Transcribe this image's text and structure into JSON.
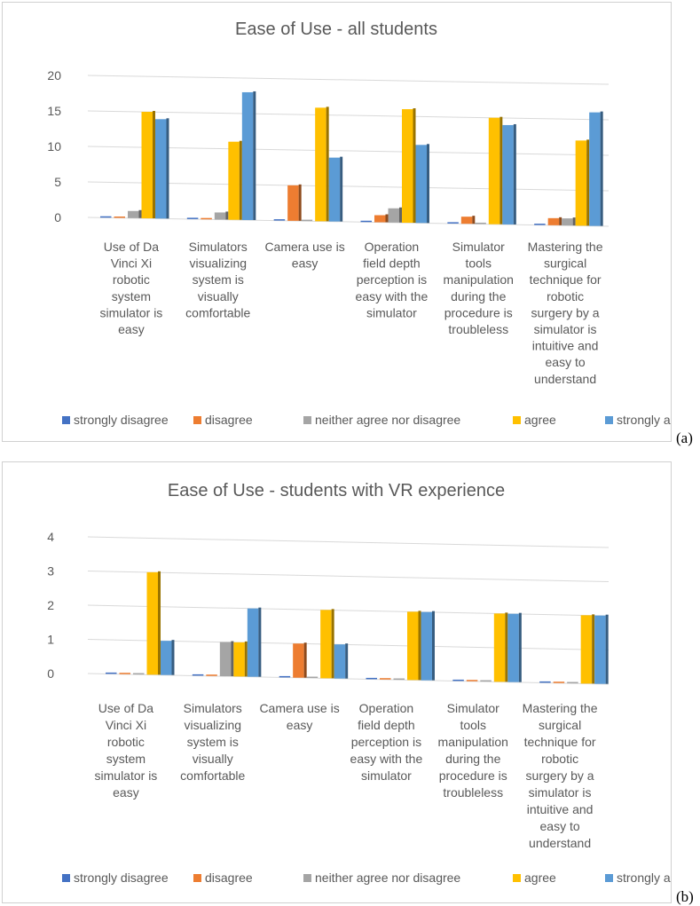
{
  "chart_data": [
    {
      "type": "bar",
      "title": "Ease of Use - all students",
      "panel_label": "(a)",
      "categories": [
        "Use of Da Vinci Xi robotic system simulator is easy",
        "Simulators visualizing system is visually comfortable",
        "Camera use is easy",
        "Operation field depth perception is easy with the simulator",
        "Simulator tools manipulation during the procedure is troubleless",
        "Mastering the surgical technique for robotic surgery by a simulator is intuitive and easy to understand"
      ],
      "category_lines": [
        [
          "Use of Da",
          "Vinci Xi",
          "robotic",
          "system",
          "simulator is",
          "easy"
        ],
        [
          "Simulators",
          "visualizing",
          "system is",
          "visually",
          "comfortable"
        ],
        [
          "Camera use is",
          "easy"
        ],
        [
          "Operation",
          "field depth",
          "perception is",
          "easy with the",
          "simulator"
        ],
        [
          "Simulator",
          "tools",
          "manipulation",
          "during the",
          "procedure is",
          "troubleless"
        ],
        [
          "Mastering the",
          "surgical",
          "technique for",
          "robotic",
          "surgery by a",
          "simulator is",
          "intuitive and",
          "easy to",
          "understand"
        ]
      ],
      "series": [
        {
          "name": "strongly disagree",
          "color": "#4472c4",
          "values": [
            0,
            0,
            0,
            0,
            0,
            0
          ]
        },
        {
          "name": "disagree",
          "color": "#ed7d31",
          "values": [
            0,
            0,
            5,
            1,
            1,
            1
          ]
        },
        {
          "name": "neither agree nor disagree",
          "color": "#a5a5a5",
          "values": [
            1,
            1,
            0,
            2,
            0,
            1
          ]
        },
        {
          "name": "agree",
          "color": "#ffc000",
          "values": [
            15,
            11,
            16,
            16,
            15,
            12
          ]
        },
        {
          "name": "strongly agree",
          "color": "#5b9bd5",
          "values": [
            14,
            18,
            9,
            11,
            14,
            16
          ]
        }
      ],
      "ylim": [
        0,
        20
      ],
      "yticks": [
        "0",
        "5",
        "10",
        "15",
        "20"
      ],
      "grid": true,
      "legend": "bottom"
    },
    {
      "type": "bar",
      "title": "Ease of Use - students with VR experience",
      "panel_label": "(b)",
      "categories": [
        "Use of Da Vinci Xi robotic system simulator is easy",
        "Simulators visualizing system is visually comfortable",
        "Camera use is easy",
        "Operation field depth perception is easy with the simulator",
        "Simulator tools manipulation during the procedure is troubleless",
        "Mastering the surgical technique for robotic surgery by a simulator is intuitive and easy to understand"
      ],
      "category_lines": [
        [
          "Use of Da",
          "Vinci Xi",
          "robotic",
          "system",
          "simulator is",
          "easy"
        ],
        [
          "Simulators",
          "visualizing",
          "system is",
          "visually",
          "comfortable"
        ],
        [
          "Camera use is",
          "easy"
        ],
        [
          "Operation",
          "field depth",
          "perception is",
          "easy with the",
          "simulator"
        ],
        [
          "Simulator",
          "tools",
          "manipulation",
          "during the",
          "procedure is",
          "troubleless"
        ],
        [
          "Mastering the",
          "surgical",
          "technique for",
          "robotic",
          "surgery by a",
          "simulator is",
          "intuitive and",
          "easy to",
          "understand"
        ]
      ],
      "series": [
        {
          "name": "strongly disagree",
          "color": "#4472c4",
          "values": [
            0,
            0,
            0,
            0,
            0,
            0
          ]
        },
        {
          "name": "disagree",
          "color": "#ed7d31",
          "values": [
            0,
            0,
            1,
            0,
            0,
            0
          ]
        },
        {
          "name": "neither agree nor disagree",
          "color": "#a5a5a5",
          "values": [
            0,
            1,
            0,
            0,
            0,
            0
          ]
        },
        {
          "name": "agree",
          "color": "#ffc000",
          "values": [
            3,
            1,
            2,
            2,
            2,
            2
          ]
        },
        {
          "name": "strongly agree",
          "color": "#5b9bd5",
          "values": [
            1,
            2,
            1,
            2,
            2,
            2
          ]
        }
      ],
      "ylim": [
        0,
        4
      ],
      "yticks": [
        "0",
        "1",
        "2",
        "3",
        "4"
      ],
      "grid": true,
      "legend": "bottom"
    }
  ]
}
